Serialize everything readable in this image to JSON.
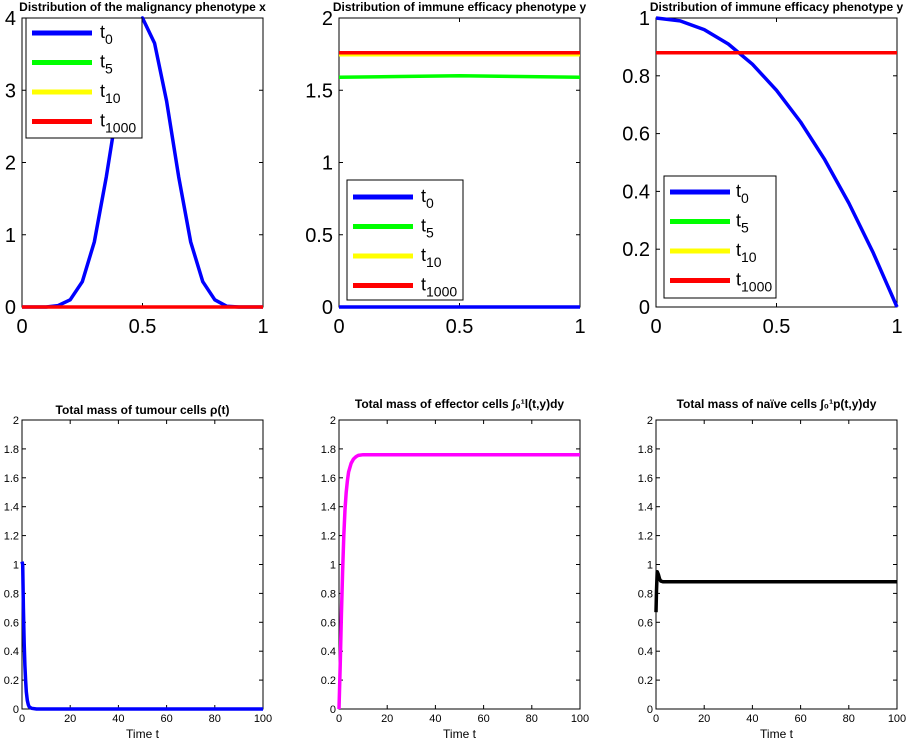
{
  "chart_data": [
    {
      "type": "line",
      "title": "Distribution of the malignancy phenotype x",
      "xlabel": "",
      "ylabel": "",
      "xlim": [
        0,
        1
      ],
      "ylim": [
        0,
        4
      ],
      "xticks": [
        0,
        0.5,
        1
      ],
      "yticks": [
        0,
        1,
        2,
        3,
        4
      ],
      "grid": false,
      "legend_position": "top-left",
      "legend": [
        {
          "base": "t",
          "sub": "0",
          "color": "#0000ff"
        },
        {
          "base": "t",
          "sub": "5",
          "color": "#00ff00"
        },
        {
          "base": "t",
          "sub": "10",
          "color": "#ffff00"
        },
        {
          "base": "t",
          "sub": "1000",
          "color": "#ff0000"
        }
      ],
      "series": [
        {
          "color": "#0000ff",
          "x": [
            0,
            0.1,
            0.15,
            0.2,
            0.25,
            0.3,
            0.35,
            0.4,
            0.45,
            0.5,
            0.55,
            0.6,
            0.65,
            0.7,
            0.75,
            0.8,
            0.85,
            0.9,
            1
          ],
          "y": [
            0,
            0,
            0.02,
            0.1,
            0.35,
            0.9,
            1.8,
            2.85,
            3.65,
            4.0,
            3.65,
            2.85,
            1.8,
            0.9,
            0.35,
            0.1,
            0.01,
            0,
            0
          ]
        },
        {
          "color": "#ff0000",
          "x": [
            0,
            1
          ],
          "y": [
            0,
            0
          ]
        }
      ]
    },
    {
      "type": "line",
      "title": "Distribution of immune efficacy phenotype y",
      "xlabel": "",
      "ylabel": "",
      "xlim": [
        0,
        1
      ],
      "ylim": [
        0,
        2
      ],
      "xticks": [
        0,
        0.5,
        1
      ],
      "yticks": [
        0,
        0.5,
        1,
        1.5,
        2
      ],
      "grid": false,
      "legend_position": "bottom-left",
      "legend": [
        {
          "base": "t",
          "sub": "0",
          "color": "#0000ff"
        },
        {
          "base": "t",
          "sub": "5",
          "color": "#00ff00"
        },
        {
          "base": "t",
          "sub": "10",
          "color": "#ffff00"
        },
        {
          "base": "t",
          "sub": "1000",
          "color": "#ff0000"
        }
      ],
      "series": [
        {
          "color": "#0000ff",
          "x": [
            0,
            1
          ],
          "y": [
            0,
            0
          ]
        },
        {
          "color": "#00ff00",
          "x": [
            0,
            0.25,
            0.5,
            0.75,
            1
          ],
          "y": [
            1.59,
            1.595,
            1.6,
            1.595,
            1.59
          ]
        },
        {
          "color": "#ffff00",
          "x": [
            0,
            1
          ],
          "y": [
            1.745,
            1.745
          ]
        },
        {
          "color": "#ff0000",
          "x": [
            0,
            1
          ],
          "y": [
            1.76,
            1.76
          ]
        }
      ]
    },
    {
      "type": "line",
      "title": "Distribution of immune efficacy phenotype y",
      "xlabel": "",
      "ylabel": "",
      "xlim": [
        0,
        1
      ],
      "ylim": [
        0,
        1
      ],
      "xticks": [
        0,
        0.5,
        1
      ],
      "yticks": [
        0,
        0.2,
        0.4,
        0.6,
        0.8,
        1
      ],
      "grid": false,
      "legend_position": "bottom-left",
      "legend": [
        {
          "base": "t",
          "sub": "0",
          "color": "#0000ff"
        },
        {
          "base": "t",
          "sub": "5",
          "color": "#00ff00"
        },
        {
          "base": "t",
          "sub": "10",
          "color": "#ffff00"
        },
        {
          "base": "t",
          "sub": "1000",
          "color": "#ff0000"
        }
      ],
      "series": [
        {
          "color": "#0000ff",
          "x": [
            0,
            0.1,
            0.2,
            0.3,
            0.4,
            0.5,
            0.6,
            0.7,
            0.8,
            0.9,
            1
          ],
          "y": [
            1,
            0.99,
            0.96,
            0.91,
            0.84,
            0.75,
            0.64,
            0.51,
            0.36,
            0.19,
            0
          ]
        },
        {
          "color": "#ff0000",
          "x": [
            0,
            1
          ],
          "y": [
            0.88,
            0.88
          ]
        }
      ]
    },
    {
      "type": "line",
      "title": "Total mass of tumour cells ρ(t)",
      "xlabel": "Time t",
      "ylabel": "",
      "xlim": [
        0,
        100
      ],
      "ylim": [
        0,
        2
      ],
      "xticks": [
        0,
        20,
        40,
        60,
        80,
        100
      ],
      "yticks": [
        0,
        0.2,
        0.4,
        0.6,
        0.8,
        1,
        1.2,
        1.4,
        1.6,
        1.8,
        2
      ],
      "grid": false,
      "legend": [],
      "series": [
        {
          "color": "#0000ff",
          "x": [
            0,
            0.3,
            0.6,
            0.9,
            1.2,
            1.5,
            1.8,
            2.2,
            2.6,
            3,
            4,
            6,
            10,
            100
          ],
          "y": [
            1.02,
            1.0,
            0.7,
            0.45,
            0.3,
            0.2,
            0.12,
            0.06,
            0.03,
            0.015,
            0.005,
            0,
            0,
            0
          ]
        }
      ]
    },
    {
      "type": "line",
      "title": "Total mass of effector cells ∫₀¹l(t,y)dy",
      "xlabel": "Time t",
      "ylabel": "",
      "xlim": [
        0,
        100
      ],
      "ylim": [
        0,
        2
      ],
      "xticks": [
        0,
        20,
        40,
        60,
        80,
        100
      ],
      "yticks": [
        0,
        0.2,
        0.4,
        0.6,
        0.8,
        1,
        1.2,
        1.4,
        1.6,
        1.8,
        2
      ],
      "grid": false,
      "legend": [],
      "series": [
        {
          "color": "#ff00ff",
          "x": [
            0,
            0.5,
            1,
            1.5,
            2,
            2.5,
            3,
            3.5,
            4,
            5,
            6,
            7,
            8,
            10,
            12,
            100
          ],
          "y": [
            0,
            0.3,
            0.65,
            0.95,
            1.2,
            1.38,
            1.5,
            1.58,
            1.64,
            1.7,
            1.73,
            1.745,
            1.755,
            1.76,
            1.76,
            1.76
          ]
        }
      ]
    },
    {
      "type": "line",
      "title": "Total mass of naïve cells ∫₀¹p(t,y)dy",
      "xlabel": "Time t",
      "ylabel": "",
      "xlim": [
        0,
        100
      ],
      "ylim": [
        0,
        2
      ],
      "xticks": [
        0,
        20,
        40,
        60,
        80,
        100
      ],
      "yticks": [
        0,
        0.2,
        0.4,
        0.6,
        0.8,
        1,
        1.2,
        1.4,
        1.6,
        1.8,
        2
      ],
      "grid": false,
      "legend": [],
      "series": [
        {
          "color": "#000000",
          "x": [
            0,
            0.2,
            0.5,
            1,
            1.5,
            2,
            3,
            4,
            6,
            100
          ],
          "y": [
            0.67,
            0.82,
            0.95,
            0.93,
            0.9,
            0.885,
            0.88,
            0.88,
            0.88,
            0.88
          ]
        }
      ]
    }
  ]
}
